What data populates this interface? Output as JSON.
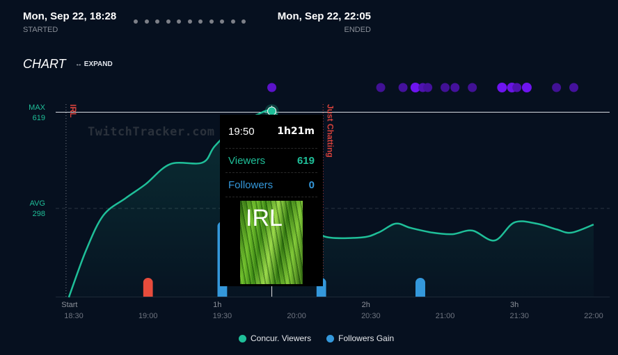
{
  "header": {
    "started_date": "Mon, Sep 22, 18:28",
    "started_label": "STARTED",
    "ended_date": "Mon, Sep 22, 22:05",
    "ended_label": "ENDED",
    "dot_count": 11
  },
  "chart_section": {
    "title": "CHART",
    "expand_label": "EXPAND",
    "expand_icon": "arrows-horizontal-icon",
    "watermark": "TwitchTracker.com"
  },
  "tooltip": {
    "time": "19:50",
    "duration": "1h21m",
    "viewers_label": "Viewers",
    "viewers_value": "619",
    "followers_label": "Followers",
    "followers_value": "0",
    "category_image_text": "IRL"
  },
  "legend": [
    {
      "label": "Concur. Viewers",
      "color": "#1fbf99"
    },
    {
      "label": "Followers Gain",
      "color": "#3498db"
    }
  ],
  "chart_data": {
    "type": "line",
    "y_labels": {
      "max_label": "MAX",
      "max_value": "619",
      "avg_label": "AVG",
      "avg_value": "298"
    },
    "max": 619,
    "avg": 298,
    "x_range": [
      "18:28",
      "22:05"
    ],
    "x_ticks": [
      "18:30",
      "19:00",
      "19:30",
      "20:00",
      "20:30",
      "21:00",
      "21:30",
      "22:00"
    ],
    "hour_ticks": [
      {
        "label": "Start",
        "time": "18:28"
      },
      {
        "label": "1h",
        "time": "19:28"
      },
      {
        "label": "2h",
        "time": "20:28"
      },
      {
        "label": "3h",
        "time": "21:28"
      }
    ],
    "categories": [
      {
        "name": "IRL",
        "time": "18:28"
      },
      {
        "name": "Just Chatting",
        "time": "20:11"
      }
    ],
    "cursor_time": "19:50",
    "series": [
      {
        "name": "Concur. Viewers",
        "color": "#1fbf99",
        "points": [
          [
            "18:28",
            0
          ],
          [
            "18:35",
            157
          ],
          [
            "18:42",
            273
          ],
          [
            "18:51",
            330
          ],
          [
            "18:59",
            376
          ],
          [
            "19:09",
            443
          ],
          [
            "19:22",
            448
          ],
          [
            "19:27",
            503
          ],
          [
            "19:36",
            573
          ],
          [
            "19:44",
            607
          ],
          [
            "19:50",
            619
          ],
          [
            "19:56",
            560
          ],
          [
            "20:02",
            420
          ],
          [
            "20:07",
            260
          ],
          [
            "20:11",
            203
          ],
          [
            "20:26",
            199
          ],
          [
            "20:33",
            215
          ],
          [
            "20:40",
            245
          ],
          [
            "20:46",
            231
          ],
          [
            "20:55",
            215
          ],
          [
            "21:03",
            210
          ],
          [
            "21:11",
            222
          ],
          [
            "21:20",
            189
          ],
          [
            "21:28",
            249
          ],
          [
            "21:37",
            245
          ],
          [
            "21:45",
            226
          ],
          [
            "21:51",
            215
          ],
          [
            "22:00",
            242
          ]
        ]
      },
      {
        "name": "Followers Gain",
        "color": "#3498db",
        "negative_color": "#e74c3c",
        "points": [
          [
            "19:00",
            -1
          ],
          [
            "19:30",
            4
          ],
          [
            "20:10",
            1
          ],
          [
            "20:50",
            1
          ]
        ]
      }
    ],
    "events": [
      {
        "time": "19:50",
        "strength": 0.7
      },
      {
        "time": "20:34",
        "strength": 0.3
      },
      {
        "time": "20:43",
        "strength": 0.35
      },
      {
        "time": "20:48",
        "strength": 1
      },
      {
        "time": "20:51",
        "strength": 0.5
      },
      {
        "time": "20:53",
        "strength": 0.35
      },
      {
        "time": "21:00",
        "strength": 0.3
      },
      {
        "time": "21:04",
        "strength": 0.35
      },
      {
        "time": "21:11",
        "strength": 0.3
      },
      {
        "time": "21:23",
        "strength": 1
      },
      {
        "time": "21:27",
        "strength": 0.9
      },
      {
        "time": "21:29",
        "strength": 0.5
      },
      {
        "time": "21:33",
        "strength": 1
      },
      {
        "time": "21:45",
        "strength": 0.3
      },
      {
        "time": "21:52",
        "strength": 0.35
      }
    ]
  }
}
